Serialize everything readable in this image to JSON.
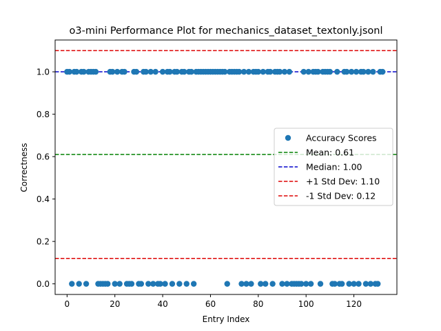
{
  "chart_data": {
    "type": "scatter",
    "title": "o3-mini Performance Plot for mechanics_dataset_textonly.jsonl",
    "xlabel": "Entry Index",
    "ylabel": "Correctness",
    "xlim": [
      -5,
      138
    ],
    "ylim": [
      -0.05,
      1.15
    ],
    "xticks": [
      0,
      20,
      40,
      60,
      80,
      100,
      120
    ],
    "yticks": [
      0.0,
      0.2,
      0.4,
      0.6,
      0.8,
      1.0
    ],
    "ytick_labels": [
      "0.0",
      "0.2",
      "0.4",
      "0.6",
      "0.8",
      "1.0"
    ],
    "grid": false,
    "legend_position": "center-right",
    "series": [
      {
        "name": "Accuracy Scores",
        "color": "#1f77b4",
        "x": [
          0,
          1,
          2,
          3,
          4,
          5,
          6,
          7,
          8,
          9,
          10,
          11,
          12,
          13,
          14,
          15,
          16,
          17,
          18,
          19,
          20,
          21,
          22,
          23,
          24,
          25,
          26,
          27,
          28,
          29,
          30,
          31,
          32,
          33,
          34,
          35,
          36,
          37,
          38,
          39,
          40,
          41,
          42,
          43,
          44,
          45,
          46,
          47,
          48,
          49,
          50,
          51,
          52,
          53,
          54,
          55,
          56,
          57,
          58,
          59,
          60,
          61,
          62,
          63,
          64,
          65,
          66,
          67,
          68,
          69,
          70,
          71,
          72,
          73,
          74,
          75,
          76,
          77,
          78,
          79,
          80,
          81,
          82,
          83,
          84,
          85,
          86,
          87,
          88,
          89,
          90,
          91,
          92,
          93,
          94,
          95,
          96,
          97,
          98,
          99,
          100,
          101,
          102,
          103,
          104,
          105,
          106,
          107,
          108,
          109,
          110,
          111,
          112,
          113,
          114,
          115,
          116,
          117,
          118,
          119,
          120,
          121,
          122,
          123,
          124,
          125,
          126,
          127,
          128,
          129,
          130,
          131,
          132
        ],
        "y": [
          1,
          1,
          0,
          1,
          1,
          0,
          1,
          1,
          0,
          1,
          1,
          1,
          1,
          0,
          0,
          0,
          0,
          0,
          1,
          1,
          0,
          1,
          0,
          1,
          1,
          0,
          0,
          0,
          1,
          1,
          0,
          0,
          1,
          1,
          0,
          1,
          0,
          1,
          0,
          0,
          1,
          0,
          1,
          1,
          0,
          1,
          1,
          0,
          1,
          1,
          0,
          1,
          1,
          0,
          1,
          1,
          1,
          1,
          1,
          1,
          1,
          1,
          1,
          1,
          1,
          1,
          1,
          0,
          1,
          1,
          1,
          1,
          1,
          0,
          1,
          0,
          1,
          0,
          1,
          1,
          1,
          0,
          1,
          0,
          1,
          1,
          0,
          1,
          1,
          1,
          0,
          1,
          0,
          1,
          0,
          0,
          0,
          0,
          0,
          1,
          0,
          1,
          0,
          1,
          1,
          1,
          0,
          1,
          1,
          1,
          1,
          0,
          0,
          1,
          0,
          0,
          1,
          1,
          0,
          1,
          0,
          1,
          0,
          1,
          1,
          0,
          1,
          0,
          1,
          0,
          0,
          1,
          1
        ]
      }
    ],
    "reference_lines": [
      {
        "name": "Mean: 0.61",
        "value": 0.61,
        "color": "#008000"
      },
      {
        "name": "Median: 1.00",
        "value": 1.0,
        "color": "#0000cc"
      },
      {
        "name": "+1 Std Dev: 1.10",
        "value": 1.1,
        "color": "#dd0000"
      },
      {
        "name": "-1 Std Dev: 0.12",
        "value": 0.12,
        "color": "#dd0000"
      }
    ]
  }
}
